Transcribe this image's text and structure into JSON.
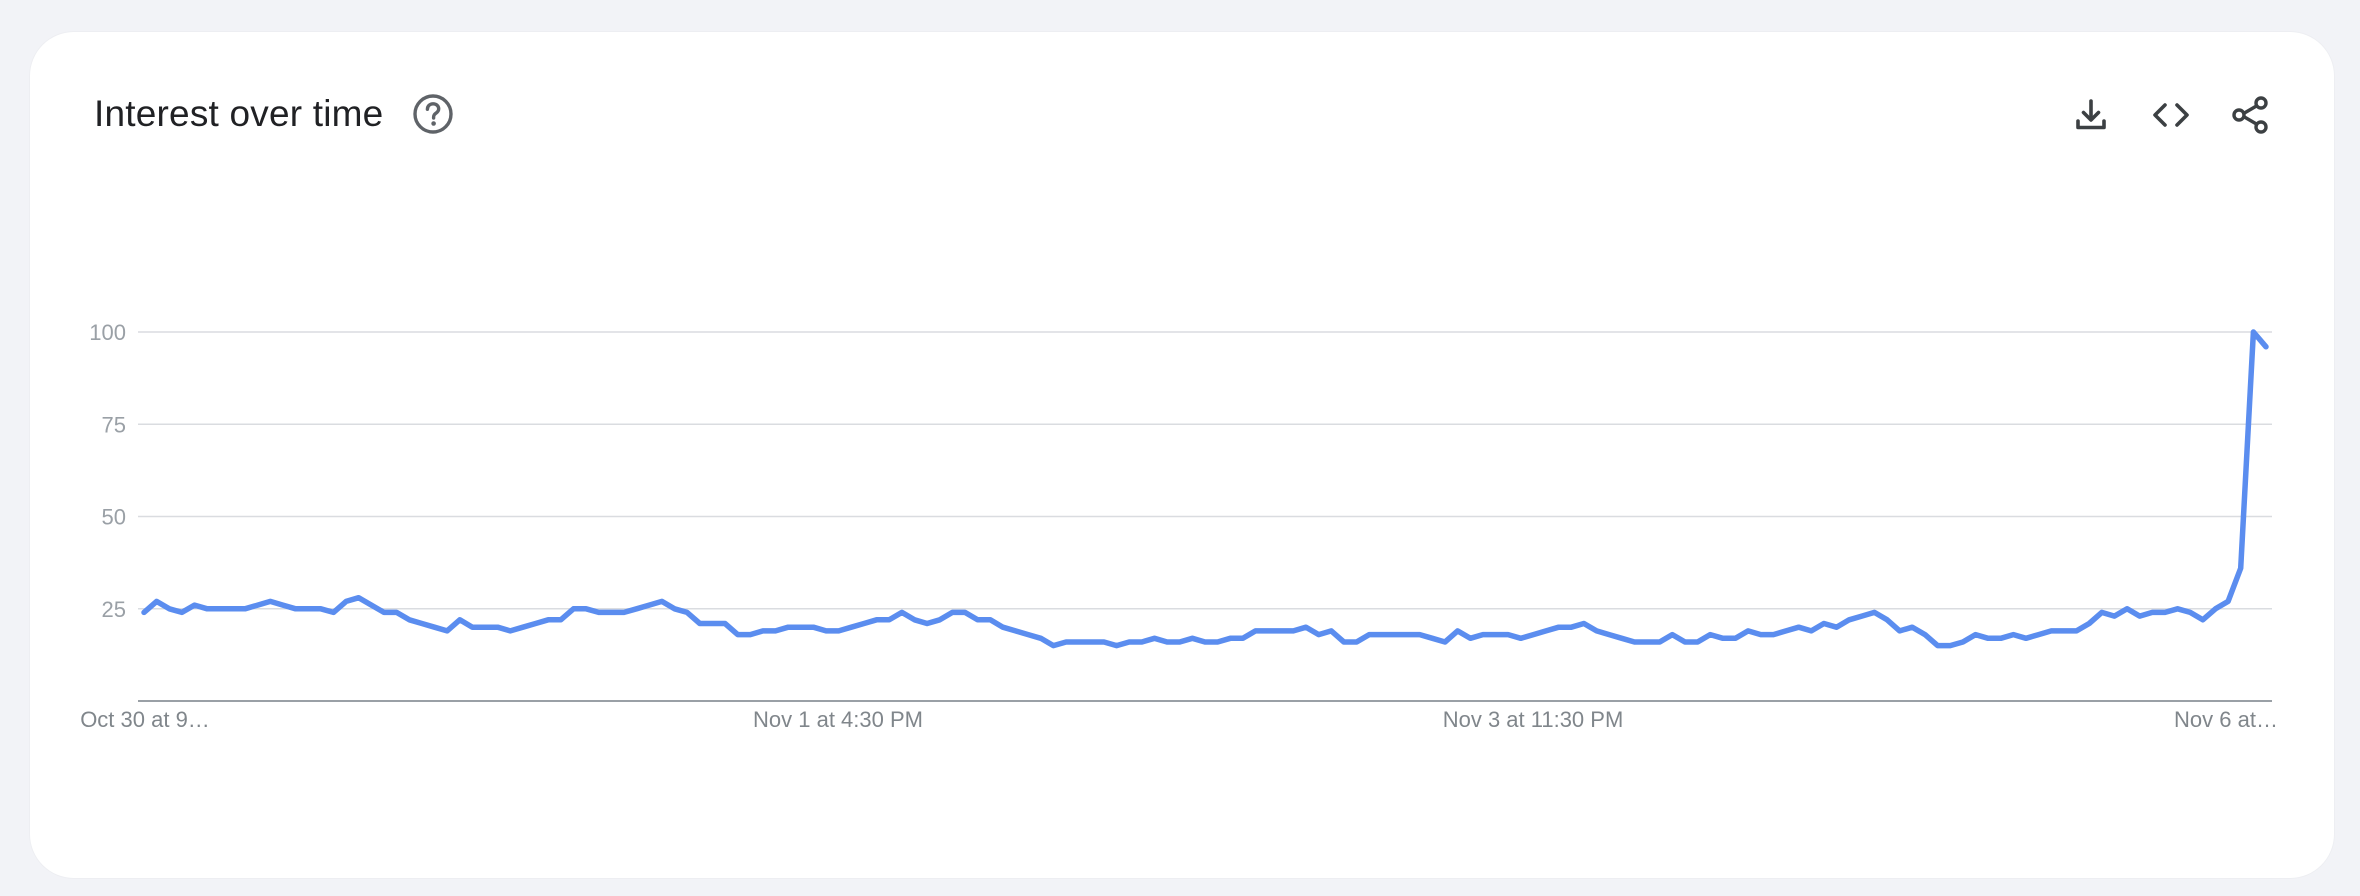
{
  "card": {
    "title": "Interest over time"
  },
  "icons": {
    "help": "help-circle-icon",
    "download": "download-icon",
    "embed": "embed-code-icon",
    "share": "share-icon"
  },
  "colors": {
    "series": "#5b8def",
    "grid": "#dadce0",
    "axis": "#9aa0a6"
  },
  "chart_data": {
    "type": "line",
    "title": "Interest over time",
    "xlabel": "",
    "ylabel": "",
    "ylim": [
      0,
      100
    ],
    "y_ticks": [
      25,
      50,
      75,
      100
    ],
    "y_tick_labels": [
      "25",
      "50",
      "75",
      "100"
    ],
    "x_tick_labels": [
      "Oct 30 at 9…",
      "Nov 1 at 4:30 PM",
      "Nov 3 at 11:30 PM",
      "Nov 6 at…"
    ],
    "grid": true,
    "legend": "none",
    "series": [
      {
        "values": [
          24,
          27,
          25,
          24,
          26,
          25,
          25,
          25,
          25,
          26,
          27,
          26,
          25,
          25,
          25,
          24,
          27,
          28,
          26,
          24,
          24,
          22,
          21,
          20,
          19,
          22,
          20,
          20,
          20,
          19,
          20,
          21,
          22,
          22,
          25,
          25,
          24,
          24,
          24,
          25,
          26,
          27,
          25,
          24,
          21,
          21,
          21,
          18,
          18,
          19,
          19,
          20,
          20,
          20,
          19,
          19,
          20,
          21,
          22,
          22,
          24,
          22,
          21,
          22,
          24,
          24,
          22,
          22,
          20,
          19,
          18,
          17,
          15,
          16,
          16,
          16,
          16,
          15,
          16,
          16,
          17,
          16,
          16,
          17,
          16,
          16,
          17,
          17,
          19,
          19,
          19,
          19,
          20,
          18,
          19,
          16,
          16,
          18,
          18,
          18,
          18,
          18,
          17,
          16,
          19,
          17,
          18,
          18,
          18,
          17,
          18,
          19,
          20,
          20,
          21,
          19,
          18,
          17,
          16,
          16,
          16,
          18,
          16,
          16,
          18,
          17,
          17,
          19,
          18,
          18,
          19,
          20,
          19,
          21,
          20,
          22,
          23,
          24,
          22,
          19,
          20,
          18,
          15,
          15,
          16,
          18,
          17,
          17,
          18,
          17,
          18,
          19,
          19,
          19,
          21,
          24,
          23,
          25,
          23,
          24,
          24,
          25,
          24,
          22,
          25,
          27,
          36,
          100,
          96
        ]
      }
    ]
  }
}
